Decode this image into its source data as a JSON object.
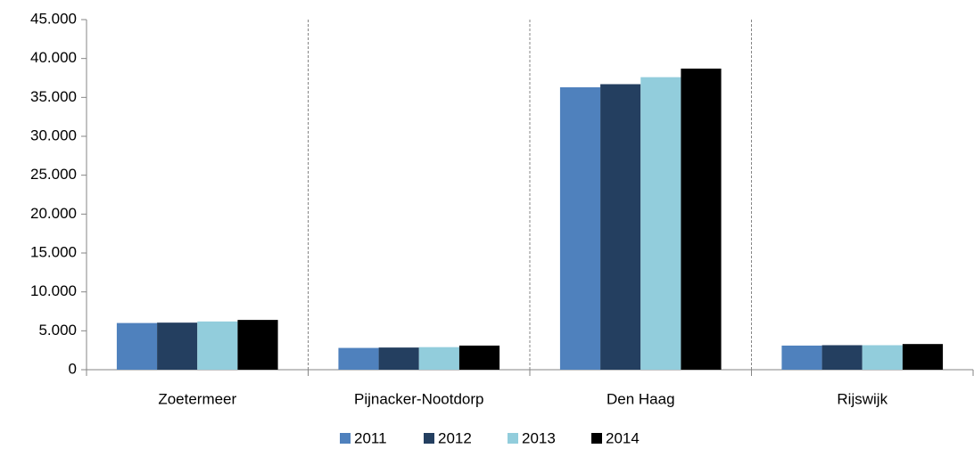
{
  "chart_data": {
    "type": "bar",
    "categories": [
      "Zoetermeer",
      "Pijnacker-Nootdorp",
      "Den Haag",
      "Rijswijk"
    ],
    "series": [
      {
        "name": "2011",
        "color": "#4f81bd",
        "values": [
          6000,
          2800,
          36300,
          3100
        ]
      },
      {
        "name": "2012",
        "color": "#243f60",
        "values": [
          6050,
          2850,
          36700,
          3150
        ]
      },
      {
        "name": "2013",
        "color": "#92cddc",
        "values": [
          6200,
          2900,
          37600,
          3150
        ]
      },
      {
        "name": "2014",
        "color": "#000000",
        "values": [
          6400,
          3100,
          38700,
          3300
        ]
      }
    ],
    "ylim": [
      0,
      45000
    ],
    "yticks": [
      0,
      {
        "value": 5000,
        "label": "5.000"
      },
      {
        "value": 10000,
        "label": "10.000"
      },
      {
        "value": 15000,
        "label": "15.000"
      },
      {
        "value": 20000,
        "label": "20.000"
      },
      {
        "value": 25000,
        "label": "25.000"
      },
      {
        "value": 30000,
        "label": "30.000"
      },
      {
        "value": 35000,
        "label": "35.000"
      },
      {
        "value": 40000,
        "label": "40.000"
      },
      {
        "value": 45000,
        "label": "45.000"
      }
    ],
    "grid": "x",
    "legend": "bottom"
  }
}
